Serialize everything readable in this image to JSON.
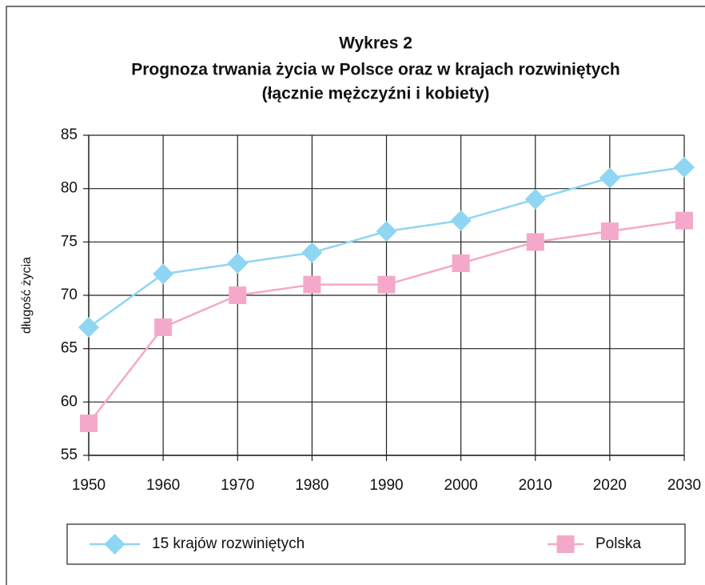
{
  "chart_data": {
    "type": "line",
    "title": "Wykres 2",
    "subtitle": [
      "Prognoza trwania życia w Polsce oraz w krajach rozwiniętych",
      "(łącznie mężczyźni i kobiety)"
    ],
    "ylabel": "długość życia",
    "x": [
      1950,
      1960,
      1970,
      1980,
      1990,
      2000,
      2010,
      2020,
      2030
    ],
    "xlim": [
      1950,
      2030
    ],
    "xticks": [
      1950,
      1960,
      1970,
      1980,
      1990,
      2000,
      2010,
      2020,
      2030
    ],
    "ylim": [
      55,
      85
    ],
    "yticks": [
      55,
      60,
      65,
      70,
      75,
      80,
      85
    ],
    "grid": true,
    "legend": "bottom",
    "series": [
      {
        "name": "15 krajów rozwiniętych",
        "color": "#8fd6f2",
        "marker": "diamond",
        "values": [
          67,
          72,
          73,
          74,
          76,
          77,
          79,
          81,
          82
        ]
      },
      {
        "name": "Polska",
        "color": "#f4a9ca",
        "marker": "square",
        "values": [
          58,
          67,
          70,
          71,
          71,
          73,
          75,
          76,
          77
        ]
      }
    ]
  }
}
